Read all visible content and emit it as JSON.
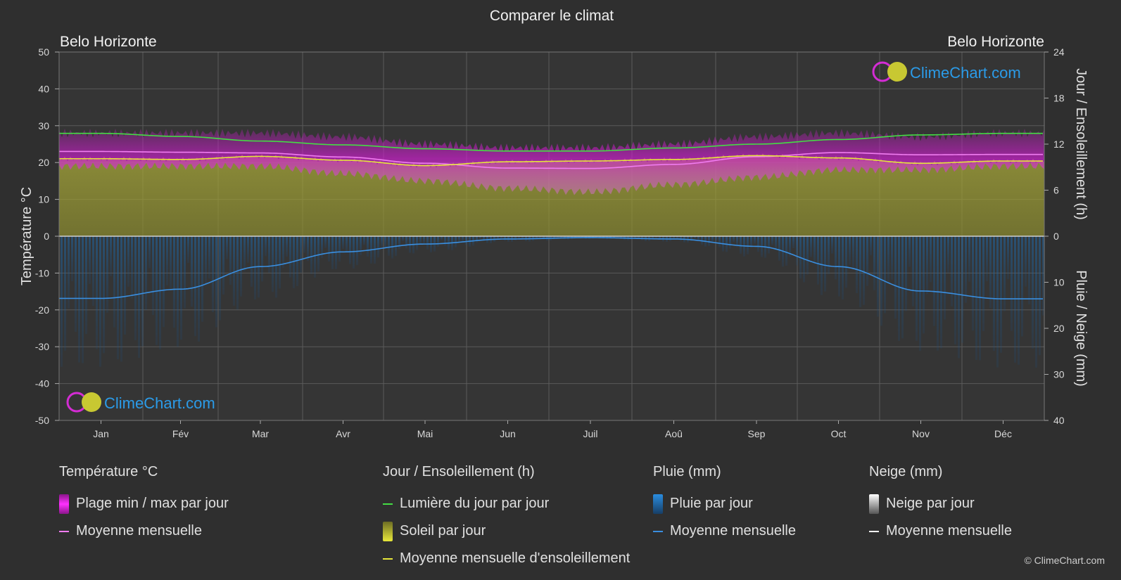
{
  "title": "Comparer le climat",
  "location_left": "Belo Horizonte",
  "location_right": "Belo Horizonte",
  "brand": "ClimeChart.com",
  "copyright": "© ClimeChart.com",
  "colors": {
    "background": "#2f2f2f",
    "temp_range": "#d21fd2",
    "temp_mean": "#f07cf0",
    "daylight": "#44dd44",
    "sunshine_fill": "#a8a832",
    "sunshine_mean": "#e6e63a",
    "rain": "#1e6fb8",
    "rain_mean": "#3a8fe0",
    "snow_mean": "#ffffff"
  },
  "chart_data": {
    "type": "area",
    "title": "Comparer le climat",
    "months": [
      "Jan",
      "Fév",
      "Mar",
      "Avr",
      "Mai",
      "Jun",
      "Juil",
      "Aoû",
      "Sep",
      "Oct",
      "Nov",
      "Déc"
    ],
    "axes": {
      "left": {
        "label": "Température °C",
        "ticks": [
          50,
          40,
          30,
          20,
          10,
          0,
          -10,
          -20,
          -30,
          -40,
          -50
        ],
        "range": [
          -50,
          50
        ]
      },
      "right_top": {
        "label": "Jour / Ensoleillement (h)",
        "ticks": [
          24,
          18,
          12,
          6,
          0
        ],
        "range": [
          0,
          24
        ]
      },
      "right_bottom": {
        "label": "Pluie / Neige (mm)",
        "ticks": [
          0,
          10,
          20,
          30,
          40
        ],
        "range": [
          0,
          40
        ]
      }
    },
    "series": [
      {
        "name": "Lumière du jour par jour",
        "unit": "h",
        "values": [
          13.4,
          13.0,
          12.4,
          11.9,
          11.4,
          11.1,
          11.1,
          11.5,
          12.0,
          12.6,
          13.2,
          13.4
        ]
      },
      {
        "name": "Moyenne mensuelle d'ensoleillement",
        "unit": "h",
        "values": [
          10.1,
          10.0,
          10.4,
          9.9,
          9.2,
          9.7,
          9.8,
          10.0,
          10.5,
          10.2,
          9.5,
          9.8
        ]
      },
      {
        "name": "Moyenne mensuelle",
        "unit": "°C",
        "values": [
          23.0,
          22.8,
          22.6,
          21.5,
          19.8,
          18.5,
          18.4,
          19.5,
          21.6,
          22.7,
          22.1,
          22.2
        ]
      },
      {
        "name": "Plage min / max par jour",
        "unit": "°C",
        "min": [
          19,
          19,
          19,
          17,
          15,
          13,
          12,
          14,
          16,
          18,
          18,
          19
        ],
        "max": [
          28,
          28,
          28,
          27,
          25,
          24,
          24,
          25,
          27,
          28,
          27,
          28
        ]
      },
      {
        "name": "Moyenne mensuelle",
        "unit": "mm",
        "values": [
          13.5,
          11.5,
          6.6,
          3.4,
          1.7,
          0.6,
          0.3,
          0.6,
          2.2,
          6.6,
          11.9,
          13.6
        ]
      }
    ]
  },
  "legend": {
    "temperature": {
      "header": "Température °C",
      "items": [
        "Plage min / max par jour",
        "Moyenne mensuelle"
      ]
    },
    "sun": {
      "header": "Jour / Ensoleillement (h)",
      "items": [
        "Lumière du jour par jour",
        "Soleil par jour",
        "Moyenne mensuelle d'ensoleillement"
      ]
    },
    "rain": {
      "header": "Pluie (mm)",
      "items": [
        "Pluie par jour",
        "Moyenne mensuelle"
      ]
    },
    "snow": {
      "header": "Neige (mm)",
      "items": [
        "Neige par jour",
        "Moyenne mensuelle"
      ]
    }
  }
}
